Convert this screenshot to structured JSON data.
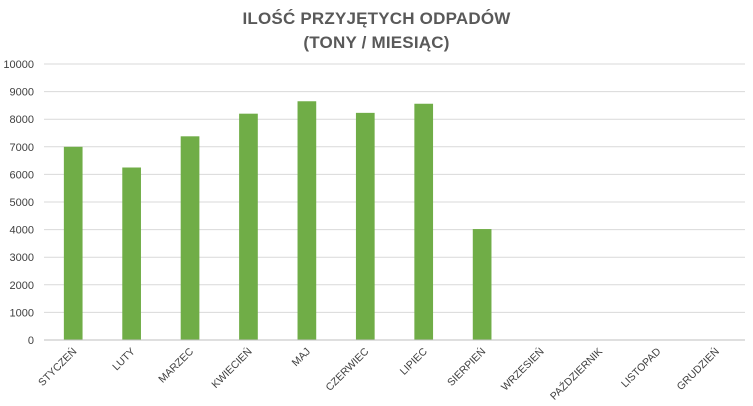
{
  "chart_data": {
    "type": "bar",
    "title_lines": [
      "ILOŚĆ PRZYJĘTYCH ODPADÓW",
      "(TONY / MIESIĄC)"
    ],
    "categories": [
      "STYCZEŃ",
      "LUTY",
      "MARZEC",
      "KWIECIEŃ",
      "MAJ",
      "CZERWIEC",
      "LIPIEC",
      "SIERPIEŃ",
      "WRZESIEŃ",
      "PAŹDZIERNIK",
      "LISTOPAD",
      "GRUDZIEŃ"
    ],
    "values": [
      7000,
      6250,
      7380,
      8200,
      8650,
      8230,
      8560,
      4020,
      null,
      null,
      null,
      null
    ],
    "ylim": [
      0,
      10000
    ],
    "yticks": [
      0,
      1000,
      2000,
      3000,
      4000,
      5000,
      6000,
      7000,
      8000,
      9000,
      10000
    ],
    "xlabel": "",
    "ylabel": "",
    "grid": true,
    "legend": "none",
    "bar_color": "#70AD47",
    "grid_color": "#D9D9D9",
    "axis_color": "#BFBFBF"
  }
}
